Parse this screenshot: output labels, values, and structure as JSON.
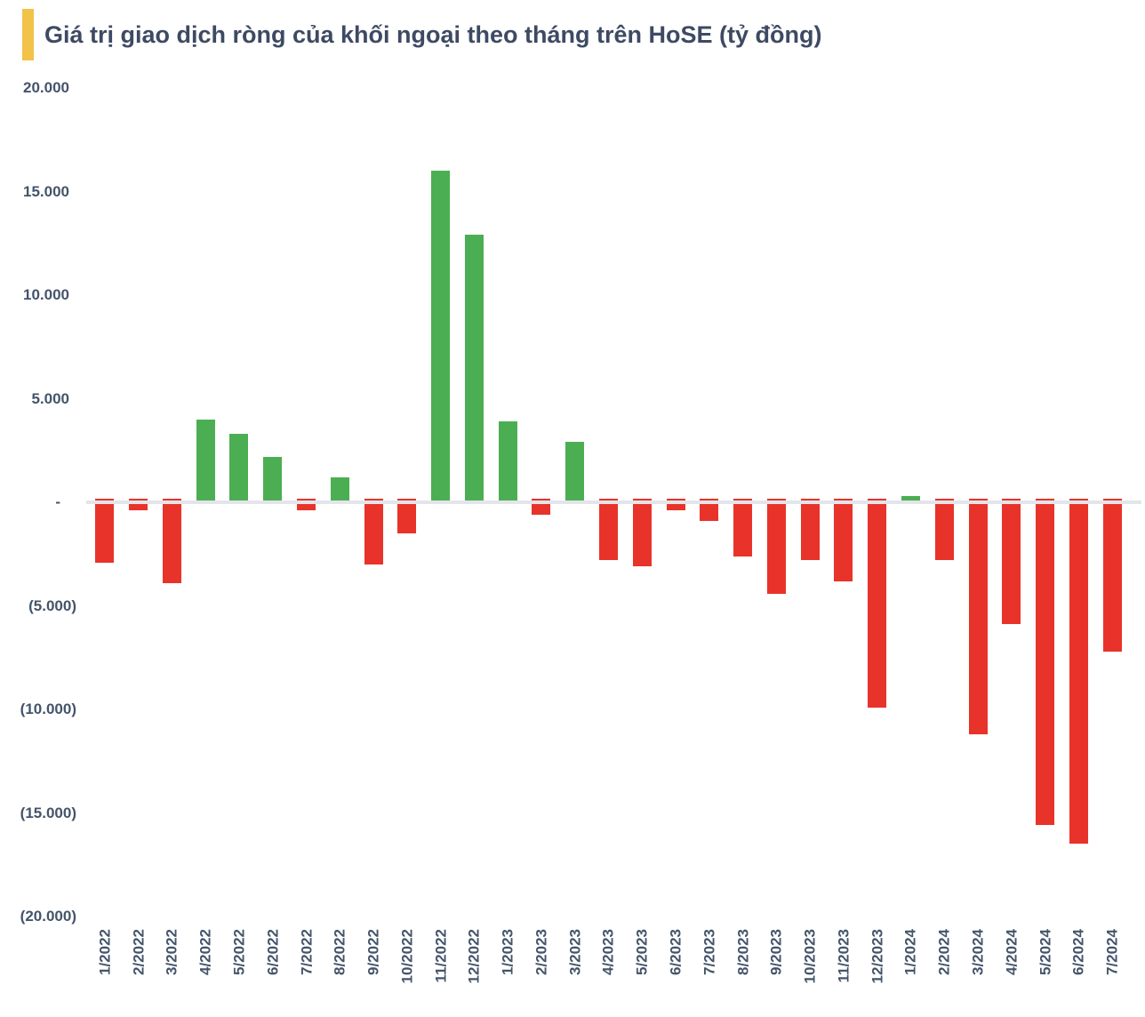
{
  "header": {
    "accent_color": "#F2C24B"
  },
  "text_color": "#44546A",
  "title_color": "#3E4A63",
  "chart_data": {
    "type": "bar",
    "title": "Giá trị giao dịch ròng của khối ngoại theo tháng trên HoSE (tỷ đồng)",
    "xlabel": "",
    "ylabel": "",
    "legend": "none",
    "grid": "zero-line-only",
    "ylim": [
      -20000,
      20000
    ],
    "positive_color": "#4CAE52",
    "negative_color": "#E8332A",
    "zero_line_color": "#E3E5EA",
    "y_ticks": [
      {
        "label": "20.000",
        "value": 20000
      },
      {
        "label": "15.000",
        "value": 15000
      },
      {
        "label": "10.000",
        "value": 10000
      },
      {
        "label": "5.000",
        "value": 5000
      },
      {
        "label": "-",
        "value": 0
      },
      {
        "label": "(5.000)",
        "value": -5000
      },
      {
        "label": "(10.000)",
        "value": -10000
      },
      {
        "label": "(15.000)",
        "value": -15000
      },
      {
        "label": "(20.000)",
        "value": -20000
      }
    ],
    "categories": [
      "1/2022",
      "2/2022",
      "3/2022",
      "4/2022",
      "5/2022",
      "6/2022",
      "7/2022",
      "8/2022",
      "9/2022",
      "10/2022",
      "11/2022",
      "12/2022",
      "1/2023",
      "2/2023",
      "3/2023",
      "4/2023",
      "5/2023",
      "6/2023",
      "7/2023",
      "8/2023",
      "9/2023",
      "10/2023",
      "11/2023",
      "12/2023",
      "1/2024",
      "2/2024",
      "3/2024",
      "4/2024",
      "5/2024",
      "6/2024",
      "7/2024"
    ],
    "values": [
      -2900,
      -400,
      -3900,
      4000,
      3300,
      2200,
      -400,
      1200,
      -3000,
      -1500,
      16000,
      12900,
      3900,
      -600,
      2900,
      -2800,
      -3100,
      -400,
      -900,
      -2600,
      -4400,
      -2800,
      -3800,
      -9900,
      300,
      -2800,
      -11200,
      -5900,
      -15600,
      -16500,
      -7200
    ]
  }
}
